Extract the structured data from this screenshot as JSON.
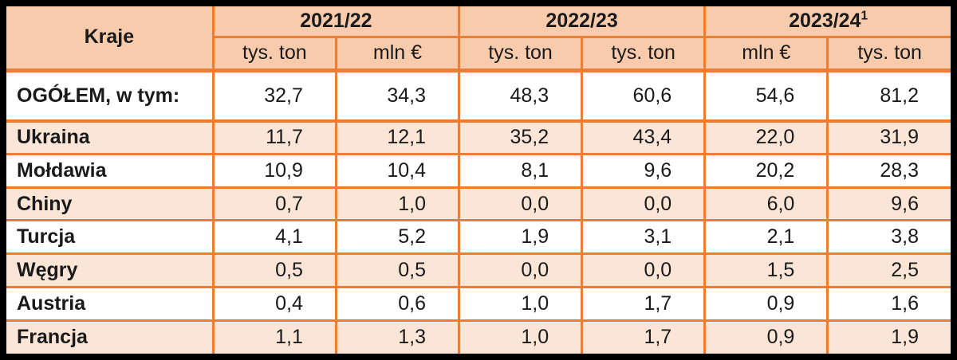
{
  "table": {
    "corner_header": "Kraje",
    "year_groups": [
      {
        "label": "2021/22",
        "sup": ""
      },
      {
        "label": "2022/23",
        "sup": ""
      },
      {
        "label": "2023/24",
        "sup": "1"
      }
    ],
    "sub_headers": [
      "tys. ton",
      "mln €",
      "tys. ton",
      "tys. ton",
      "mln €",
      "tys. ton"
    ],
    "total_row": {
      "label": "OGÓŁEM, w tym:",
      "values": [
        "32,7",
        "34,3",
        "48,3",
        "60,6",
        "54,6",
        "81,2"
      ]
    },
    "rows": [
      {
        "label": "Ukraina",
        "values": [
          "11,7",
          "12,1",
          "35,2",
          "43,4",
          "22,0",
          "31,9"
        ]
      },
      {
        "label": "Mołdawia",
        "values": [
          "10,9",
          "10,4",
          "8,1",
          "9,6",
          "20,2",
          "28,3"
        ]
      },
      {
        "label": "Chiny",
        "values": [
          "0,7",
          "1,0",
          "0,0",
          "0,0",
          "6,0",
          "9,6"
        ]
      },
      {
        "label": "Turcja",
        "values": [
          "4,1",
          "5,2",
          "1,9",
          "3,1",
          "2,1",
          "3,8"
        ]
      },
      {
        "label": "Węgry",
        "values": [
          "0,5",
          "0,5",
          "0,0",
          "0,0",
          "1,5",
          "2,5"
        ]
      },
      {
        "label": "Austria",
        "values": [
          "0,4",
          "0,6",
          "1,0",
          "1,7",
          "0,9",
          "1,6"
        ]
      },
      {
        "label": "Francja",
        "values": [
          "1,1",
          "1,3",
          "1,0",
          "1,7",
          "0,9",
          "1,9"
        ]
      }
    ],
    "colors": {
      "grid_orange": "#ED7D31",
      "header_fill": "#F8CBAD",
      "stripe_fill": "#FBE5D6",
      "frame_black": "#000000"
    }
  }
}
